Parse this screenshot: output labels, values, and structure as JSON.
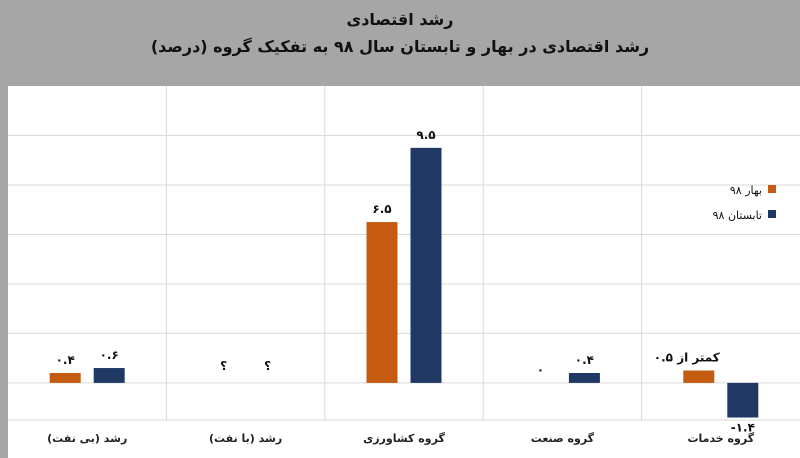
{
  "chart_data": {
    "type": "bar",
    "title": "رشد اقتصادی",
    "subtitle": "رشد اقتصادی در بهار و تابستان سال ۹۸ به تفکیک گروه (درصد)",
    "categories": [
      "رشد (بی نفت)",
      "رشد (با نفت)",
      "گروه کشاورزی",
      "گروه صنعت",
      "گروه خدمات"
    ],
    "series": [
      {
        "name": "بهار ۹۸",
        "color": "#c55a11",
        "values": [
          0.4,
          null,
          6.5,
          0,
          0.5
        ],
        "labels": [
          "۰.۴",
          "؟",
          "۶.۵",
          "۰",
          "کمتر از ۰.۵"
        ]
      },
      {
        "name": "تابستان ۹۸",
        "color": "#1f3864",
        "values": [
          0.6,
          null,
          9.5,
          0.4,
          -1.4
        ],
        "labels": [
          "۰.۶",
          "؟",
          "۹.۵",
          "۰.۴",
          "-۱.۴"
        ]
      }
    ],
    "ylim": [
      -1.5,
      12
    ],
    "grid": true,
    "legend_position": "right",
    "plot_background": "#ffffff",
    "page_background": "#a6a6a6"
  }
}
